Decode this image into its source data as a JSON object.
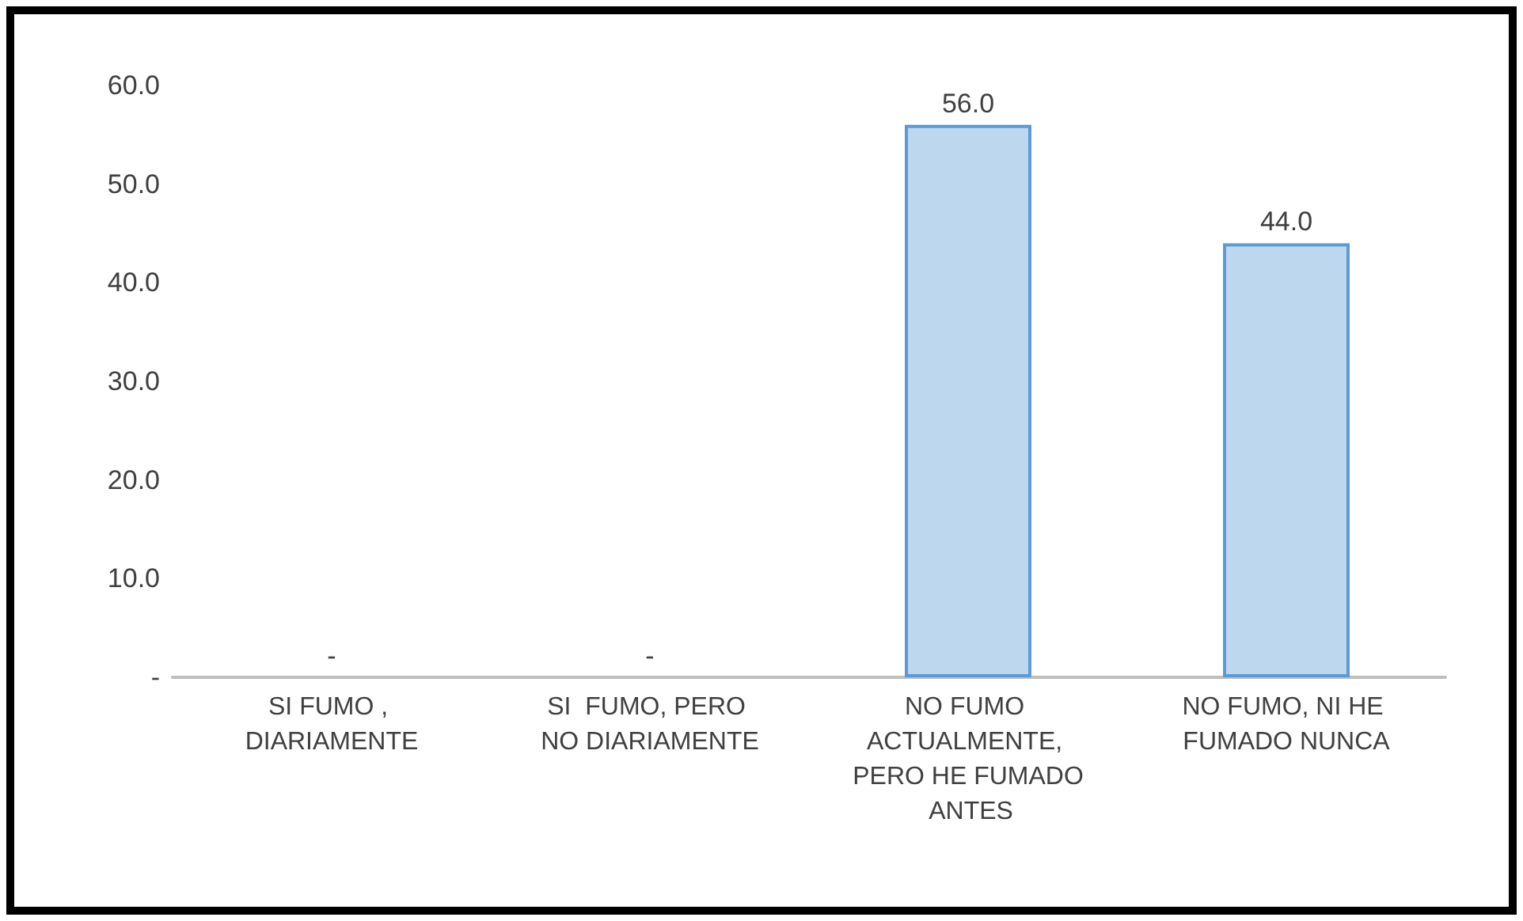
{
  "chart_data": {
    "type": "bar",
    "categories": [
      "SI FUMO , DIARIAMENTE",
      "SI  FUMO, PERO NO DIARIAMENTE",
      "NO FUMO ACTUALMENTE, PERO HE FUMADO ANTES",
      "NO FUMO, NI HE FUMADO NUNCA"
    ],
    "values": [
      0,
      0,
      56,
      44
    ],
    "value_labels": [
      "-",
      "-",
      "56.0",
      "44.0"
    ],
    "color": "#bdd7ee",
    "ylim": [
      0,
      60
    ],
    "yticks": [
      {
        "value": 0,
        "label": "-"
      },
      {
        "value": 10,
        "label": "10.0"
      },
      {
        "value": 20,
        "label": "20.0"
      },
      {
        "value": 30,
        "label": "30.0"
      },
      {
        "value": 40,
        "label": "40.0"
      },
      {
        "value": 50,
        "label": "50.0"
      },
      {
        "value": 60,
        "label": "60.0"
      }
    ],
    "grid": false
  }
}
